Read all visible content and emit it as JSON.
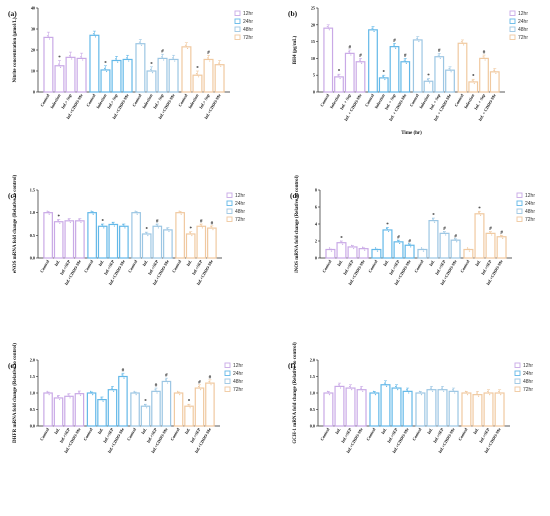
{
  "colors": {
    "12hr": "#c9a9e6",
    "24hr": "#63b8e8",
    "48hr": "#9cc6e3",
    "72hr": "#f0c9a0"
  },
  "chart_data": [
    {
      "panel": "(a)",
      "type": "bar",
      "ylabel": "Nitrite concentration (µmol/L)",
      "ylim": [
        0,
        40
      ],
      "yticks": [
        0,
        10,
        20,
        30,
        40
      ],
      "xlabel": "",
      "legend": [
        "12hr",
        "24hr",
        "48hr",
        "72hr"
      ],
      "groups": [
        {
          "series": "12hr",
          "categories": [
            "Control",
            "Infection",
            "Inf.+ Sep",
            "Inf.+CDDO-Me"
          ],
          "values": [
            26,
            12.5,
            16.5,
            16
          ],
          "errors": [
            2.5,
            2.5,
            2.5,
            2.5
          ],
          "marks": [
            "",
            "*",
            "",
            ""
          ]
        },
        {
          "series": "24hr",
          "categories": [
            "Control",
            "Infection",
            "Inf.+ Sep",
            "Inf.+CDDO-Me"
          ],
          "values": [
            27,
            10.5,
            15,
            15.5
          ],
          "errors": [
            2,
            2,
            2,
            2
          ],
          "marks": [
            "",
            "*",
            "",
            ""
          ]
        },
        {
          "series": "48hr",
          "categories": [
            "Control",
            "Infection",
            "Inf.+ Sep",
            "Inf.+CDDO-Me"
          ],
          "values": [
            23,
            10,
            16,
            15.5
          ],
          "errors": [
            2,
            2,
            2,
            2
          ],
          "marks": [
            "",
            "*",
            "#",
            ""
          ]
        },
        {
          "series": "72hr",
          "categories": [
            "Control",
            "Infection",
            "Inf.+ Sep",
            "Inf.+CDDO-Me"
          ],
          "values": [
            21.5,
            8,
            15.5,
            13
          ],
          "errors": [
            2,
            2,
            2,
            2
          ],
          "marks": [
            "",
            "*",
            "#",
            ""
          ]
        }
      ]
    },
    {
      "panel": "(b)",
      "type": "bar",
      "ylabel": "BH4 (pg/mL)",
      "ylim": [
        0,
        25
      ],
      "yticks": [
        0,
        5,
        10,
        15,
        20,
        25
      ],
      "xlabel": "Time (hr)",
      "legend": [
        "12hr",
        "24hr",
        "48hr",
        "72hr"
      ],
      "groups": [
        {
          "series": "12hr",
          "categories": [
            "Control",
            "Infection",
            "Inf. + Sep",
            "Inf. + CDDO-Me"
          ],
          "values": [
            19,
            4.5,
            11.5,
            9
          ],
          "errors": [
            1,
            0.8,
            1,
            1
          ],
          "marks": [
            "",
            "*",
            "#",
            "#"
          ]
        },
        {
          "series": "24hr",
          "categories": [
            "Control",
            "Infection",
            "Inf. + Sep",
            "Inf. + CDDO-Me"
          ],
          "values": [
            18.5,
            4.2,
            13.5,
            9
          ],
          "errors": [
            1,
            0.8,
            1,
            1
          ],
          "marks": [
            "",
            "*",
            "#",
            "#"
          ]
        },
        {
          "series": "48hr",
          "categories": [
            "Control",
            "Infection",
            "Inf. + Sep",
            "Inf. + CDDO-Me"
          ],
          "values": [
            15.5,
            3.2,
            10.5,
            6.5
          ],
          "errors": [
            1,
            0.8,
            1,
            1
          ],
          "marks": [
            "",
            "*",
            "#",
            ""
          ]
        },
        {
          "series": "72hr",
          "categories": [
            "Control",
            "Infection",
            "Inf. + Sep",
            "Inf. + CDDO-Me"
          ],
          "values": [
            14.5,
            3,
            10,
            6
          ],
          "errors": [
            1,
            0.8,
            1,
            1
          ],
          "marks": [
            "",
            "*",
            "#",
            ""
          ]
        }
      ]
    },
    {
      "panel": "(c)",
      "type": "bar",
      "ylabel": "eNOS mRNA fold change (Relative to control)",
      "ylim": [
        0,
        1.5
      ],
      "yticks": [
        0.0,
        0.5,
        1.0,
        1.5
      ],
      "xlabel": "",
      "legend": [
        "12hr",
        "24hr",
        "48hr",
        "72hr"
      ],
      "groups": [
        {
          "series": "12hr",
          "categories": [
            "Control",
            "Inf.",
            "Inf.+SEP",
            "Inf.+CDDO-Me"
          ],
          "values": [
            1.0,
            0.8,
            0.82,
            0.82
          ],
          "errors": [
            0.03,
            0.05,
            0.05,
            0.05
          ],
          "marks": [
            "",
            "*",
            "",
            ""
          ]
        },
        {
          "series": "24hr",
          "categories": [
            "Control",
            "Inf.",
            "Inf.+SEP",
            "Inf.+CDDO-Me"
          ],
          "values": [
            1.0,
            0.7,
            0.74,
            0.7
          ],
          "errors": [
            0.03,
            0.05,
            0.05,
            0.05
          ],
          "marks": [
            "",
            "*",
            "",
            ""
          ]
        },
        {
          "series": "48hr",
          "categories": [
            "Control",
            "Inf.",
            "Inf.+SEP",
            "Inf.+CDDO-Me"
          ],
          "values": [
            1.0,
            0.53,
            0.7,
            0.62
          ],
          "errors": [
            0.03,
            0.04,
            0.05,
            0.05
          ],
          "marks": [
            "",
            "*",
            "#",
            ""
          ]
        },
        {
          "series": "72hr",
          "categories": [
            "Control",
            "Inf.",
            "Inf.+SEP",
            "Inf.+CDDO-Me"
          ],
          "values": [
            1.0,
            0.53,
            0.7,
            0.66
          ],
          "errors": [
            0.03,
            0.05,
            0.05,
            0.05
          ],
          "marks": [
            "",
            "*",
            "#",
            "#"
          ]
        }
      ]
    },
    {
      "panel": "(d)",
      "type": "bar",
      "ylabel": "iNOS mRNA fold change (Relative to control)",
      "ylim": [
        0,
        8
      ],
      "yticks": [
        0,
        2,
        4,
        6,
        8
      ],
      "xlabel": "",
      "legend": [
        "12hr",
        "24hr",
        "48hr",
        "72hr"
      ],
      "groups": [
        {
          "series": "12hr",
          "categories": [
            "Control",
            "Inf.",
            "Inf.+SEP",
            "Inf.+CDDO-Me"
          ],
          "values": [
            1,
            1.8,
            1.3,
            1.1
          ],
          "errors": [
            0.05,
            0.2,
            0.15,
            0.1
          ],
          "marks": [
            "",
            "*",
            "",
            ""
          ]
        },
        {
          "series": "24hr",
          "categories": [
            "Control",
            "Inf.",
            "Inf.+SEP",
            "Inf.+CDDO-Me"
          ],
          "values": [
            1,
            3.3,
            1.9,
            1.5
          ],
          "errors": [
            0.05,
            0.3,
            0.2,
            0.15
          ],
          "marks": [
            "",
            "*",
            "#",
            "#"
          ]
        },
        {
          "series": "48hr",
          "categories": [
            "Control",
            "Inf.",
            "Inf.+SEP",
            "Inf.+CDDO-Me"
          ],
          "values": [
            1,
            4.4,
            2.9,
            2.1
          ],
          "errors": [
            0.05,
            0.3,
            0.2,
            0.15
          ],
          "marks": [
            "",
            "*",
            "#",
            "#"
          ]
        },
        {
          "series": "72hr",
          "categories": [
            "Control",
            "Inf.",
            "Inf.+SEP",
            "Inf.+CDDO-Me"
          ],
          "values": [
            1,
            5.2,
            2.9,
            2.5
          ],
          "errors": [
            0.05,
            0.3,
            0.2,
            0.15
          ],
          "marks": [
            "",
            "*",
            "#",
            "#"
          ]
        }
      ]
    },
    {
      "panel": "(e)",
      "type": "bar",
      "ylabel": "DHFR mRNA fold change (Relative to control)",
      "ylim": [
        0,
        2.0
      ],
      "yticks": [
        0.0,
        0.5,
        1.0,
        1.5,
        2.0
      ],
      "xlabel": "",
      "legend": [
        "12hr",
        "24hr",
        "48hr",
        "72hr"
      ],
      "groups": [
        {
          "series": "12hr",
          "categories": [
            "Control",
            "Inf.",
            "Inf.+SEP",
            "Inf.+CDDO-Me"
          ],
          "values": [
            1.0,
            0.85,
            0.9,
            0.98
          ],
          "errors": [
            0.03,
            0.08,
            0.08,
            0.08
          ],
          "marks": [
            "",
            "",
            "",
            ""
          ]
        },
        {
          "series": "24hr",
          "categories": [
            "Control",
            "Inf.",
            "Inf.+SEP",
            "Inf.+CDDO-Me"
          ],
          "values": [
            1.0,
            0.8,
            1.1,
            1.5
          ],
          "errors": [
            0.03,
            0.08,
            0.1,
            0.1
          ],
          "marks": [
            "",
            "",
            "",
            "#"
          ]
        },
        {
          "series": "48hr",
          "categories": [
            "Control",
            "Inf.",
            "Inf.+SEP",
            "Inf.+CDDO-Me"
          ],
          "values": [
            1.0,
            0.6,
            1.05,
            1.35
          ],
          "errors": [
            0.03,
            0.06,
            0.1,
            0.1
          ],
          "marks": [
            "",
            "*",
            "#",
            "#"
          ]
        },
        {
          "series": "72hr",
          "categories": [
            "Control",
            "Inf.",
            "Inf.+SEP",
            "Inf.+CDDO-Me"
          ],
          "values": [
            1.0,
            0.6,
            1.15,
            1.3
          ],
          "errors": [
            0.03,
            0.06,
            0.1,
            0.1
          ],
          "marks": [
            "",
            "*",
            "#",
            "#"
          ]
        }
      ]
    },
    {
      "panel": "(f)",
      "type": "bar",
      "ylabel": "GCH-1 mRNA fold change (Relative to control)",
      "ylim": [
        0,
        2.0
      ],
      "yticks": [
        0.0,
        0.5,
        1.0,
        1.5,
        2.0
      ],
      "xlabel": "",
      "legend": [
        "12hr",
        "24hr",
        "48hr",
        "72hr"
      ],
      "groups": [
        {
          "series": "12hr",
          "categories": [
            "Control",
            "Inf.",
            "Inf.+SEP",
            "Inf.+CDDO-Me"
          ],
          "values": [
            1.0,
            1.2,
            1.15,
            1.1
          ],
          "errors": [
            0.05,
            0.1,
            0.1,
            0.1
          ],
          "marks": [
            "",
            "",
            "",
            ""
          ]
        },
        {
          "series": "24hr",
          "categories": [
            "Control",
            "Inf.",
            "Inf.+SEP",
            "Inf.+CDDO-Me"
          ],
          "values": [
            1.0,
            1.25,
            1.15,
            1.05
          ],
          "errors": [
            0.05,
            0.12,
            0.1,
            0.1
          ],
          "marks": [
            "",
            "",
            "",
            ""
          ]
        },
        {
          "series": "48hr",
          "categories": [
            "Control",
            "Inf.",
            "Inf.+SEP",
            "Inf.+CDDO-Me"
          ],
          "values": [
            1.0,
            1.1,
            1.1,
            1.05
          ],
          "errors": [
            0.05,
            0.1,
            0.1,
            0.1
          ],
          "marks": [
            "",
            "",
            "",
            ""
          ]
        },
        {
          "series": "72hr",
          "categories": [
            "Control",
            "Inf.",
            "Inf.+SEP",
            "Inf.+CDDO-Me"
          ],
          "values": [
            1.0,
            0.95,
            1.0,
            1.0
          ],
          "errors": [
            0.05,
            0.1,
            0.1,
            0.1
          ],
          "marks": [
            "",
            "",
            "",
            ""
          ]
        }
      ]
    }
  ]
}
